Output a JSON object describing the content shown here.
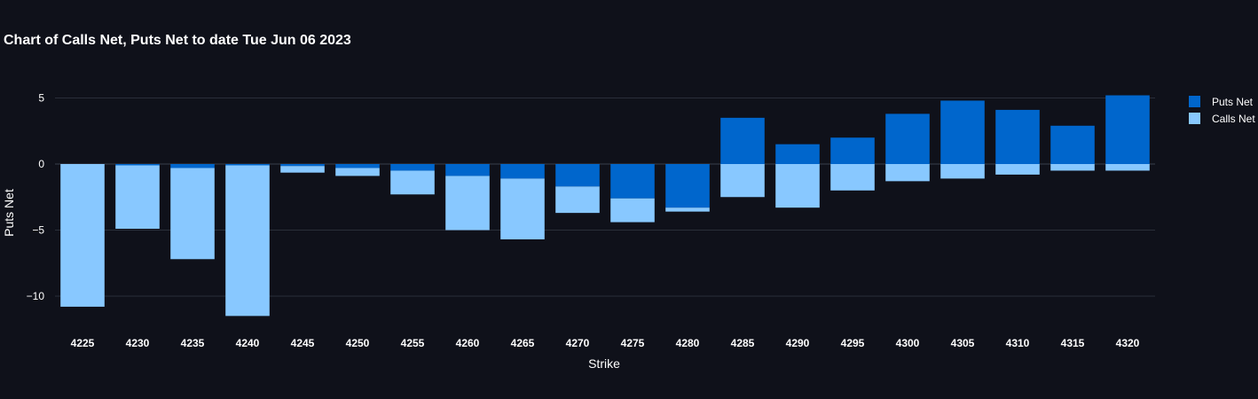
{
  "chart_data": {
    "type": "bar",
    "barmode": "relative",
    "title": "Chart of Calls Net, Puts Net to date Tue Jun 06 2023",
    "xlabel": "Strike",
    "ylabel": "Puts Net",
    "categories": [
      "4225",
      "4230",
      "4235",
      "4240",
      "4245",
      "4250",
      "4255",
      "4260",
      "4265",
      "4270",
      "4275",
      "4280",
      "4285",
      "4290",
      "4295",
      "4300",
      "4305",
      "4310",
      "4315",
      "4320"
    ],
    "series": [
      {
        "name": "Puts Net",
        "color": "#0066cc",
        "values": [
          0,
          -0.1,
          -0.3,
          -0.1,
          -0.15,
          -0.3,
          -0.5,
          -0.9,
          -1.1,
          -1.7,
          -2.6,
          -3.3,
          3.5,
          1.5,
          2.0,
          3.8,
          4.8,
          4.1,
          2.9,
          5.2
        ]
      },
      {
        "name": "Calls Net",
        "color": "#88c8ff",
        "values": [
          -10.8,
          -4.8,
          -6.9,
          -11.4,
          -0.5,
          -0.6,
          -1.8,
          -4.1,
          -4.6,
          -2.0,
          -1.8,
          -0.3,
          -2.5,
          -3.3,
          -2.0,
          -1.3,
          -1.1,
          -0.8,
          -0.5,
          -0.5
        ]
      }
    ],
    "ylim": [
      -12.3,
      6.6
    ],
    "yticks": [
      5,
      0,
      -5,
      -10
    ],
    "ytick_labels": [
      "5",
      "0",
      "−5",
      "−10"
    ],
    "grid": true,
    "legend_position": "top-right"
  }
}
